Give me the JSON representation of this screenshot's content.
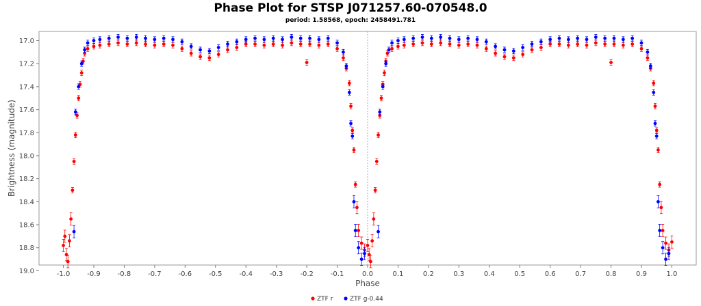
{
  "chart_data": {
    "type": "scatter",
    "title": "Phase Plot for STSP J071257.60-070548.0",
    "subtitle": "period: 1.58568, epoch: 2458491.781",
    "xlabel": "Phase",
    "ylabel": "Brightness (magnitude)",
    "xlim": [
      -1.08,
      1.08
    ],
    "ylim": [
      18.95,
      16.92
    ],
    "y_inverted": true,
    "x_ticks": [
      -1.0,
      -0.9,
      -0.8,
      -0.7,
      -0.6,
      -0.5,
      -0.4,
      -0.3,
      -0.2,
      -0.1,
      0.0,
      0.1,
      0.2,
      0.3,
      0.4,
      0.5,
      0.6,
      0.7,
      0.8,
      0.9,
      1.0
    ],
    "x_tick_labels": [
      "-1.0",
      "-0.9",
      "-0.8",
      "-0.7",
      "-0.6",
      "-0.5",
      "-0.4",
      "-0.3",
      "-0.2",
      "-0.1",
      "0.0",
      "0.1",
      "0.2",
      "0.3",
      "0.4",
      "0.5",
      "0.6",
      "0.7",
      "0.8",
      "0.9",
      "1.0"
    ],
    "y_ticks": [
      17.0,
      17.2,
      17.4,
      17.6,
      17.8,
      18.0,
      18.2,
      18.4,
      18.6,
      18.8,
      19.0
    ],
    "y_tick_labels": [
      "17.0",
      "17.2",
      "17.4",
      "17.6",
      "17.8",
      "18.0",
      "18.2",
      "18.4",
      "18.6",
      "18.8",
      "19.0"
    ],
    "grid": false,
    "reference_line_x": 0.0,
    "legend_position": "bottom-center",
    "series": [
      {
        "name": "ZTF r",
        "color": "#ff0000",
        "points": [
          [
            -1.0,
            18.78
          ],
          [
            -0.995,
            18.7
          ],
          [
            -0.99,
            18.86
          ],
          [
            -0.985,
            18.92
          ],
          [
            -0.98,
            18.74
          ],
          [
            -0.975,
            18.55
          ],
          [
            -0.97,
            18.3
          ],
          [
            -0.965,
            18.05
          ],
          [
            -0.96,
            17.82
          ],
          [
            -0.955,
            17.65
          ],
          [
            -0.95,
            17.5
          ],
          [
            -0.945,
            17.38
          ],
          [
            -0.94,
            17.28
          ],
          [
            -0.935,
            17.18
          ],
          [
            -0.93,
            17.11
          ],
          [
            -0.92,
            17.07
          ],
          [
            -0.9,
            17.05
          ],
          [
            -0.88,
            17.04
          ],
          [
            -0.85,
            17.03
          ],
          [
            -0.82,
            17.02
          ],
          [
            -0.79,
            17.03
          ],
          [
            -0.76,
            17.02
          ],
          [
            -0.73,
            17.03
          ],
          [
            -0.7,
            17.04
          ],
          [
            -0.67,
            17.03
          ],
          [
            -0.64,
            17.04
          ],
          [
            -0.61,
            17.07
          ],
          [
            -0.58,
            17.11
          ],
          [
            -0.55,
            17.14
          ],
          [
            -0.52,
            17.15
          ],
          [
            -0.49,
            17.12
          ],
          [
            -0.46,
            17.08
          ],
          [
            -0.43,
            17.06
          ],
          [
            -0.4,
            17.03
          ],
          [
            -0.37,
            17.03
          ],
          [
            -0.34,
            17.04
          ],
          [
            -0.31,
            17.03
          ],
          [
            -0.28,
            17.04
          ],
          [
            -0.25,
            17.02
          ],
          [
            -0.22,
            17.03
          ],
          [
            -0.2,
            17.19
          ],
          [
            -0.19,
            17.03
          ],
          [
            -0.16,
            17.04
          ],
          [
            -0.13,
            17.03
          ],
          [
            -0.1,
            17.07
          ],
          [
            -0.08,
            17.15
          ],
          [
            -0.07,
            17.24
          ],
          [
            -0.06,
            17.37
          ],
          [
            -0.055,
            17.57
          ],
          [
            -0.05,
            17.78
          ],
          [
            -0.045,
            17.95
          ],
          [
            -0.04,
            18.25
          ],
          [
            -0.035,
            18.45
          ],
          [
            -0.03,
            18.65
          ],
          [
            -0.02,
            18.76
          ],
          [
            -0.01,
            18.82
          ],
          [
            0.0,
            18.78
          ],
          [
            0.005,
            18.86
          ],
          [
            0.01,
            18.92
          ],
          [
            0.015,
            18.74
          ],
          [
            0.02,
            18.55
          ],
          [
            0.025,
            18.3
          ],
          [
            0.03,
            18.05
          ],
          [
            0.035,
            17.82
          ],
          [
            0.04,
            17.65
          ],
          [
            0.045,
            17.5
          ],
          [
            0.05,
            17.38
          ],
          [
            0.055,
            17.28
          ],
          [
            0.06,
            17.18
          ],
          [
            0.065,
            17.11
          ],
          [
            0.08,
            17.07
          ],
          [
            0.1,
            17.05
          ],
          [
            0.12,
            17.04
          ],
          [
            0.15,
            17.03
          ],
          [
            0.18,
            17.02
          ],
          [
            0.21,
            17.03
          ],
          [
            0.24,
            17.02
          ],
          [
            0.27,
            17.03
          ],
          [
            0.3,
            17.04
          ],
          [
            0.33,
            17.03
          ],
          [
            0.36,
            17.04
          ],
          [
            0.39,
            17.07
          ],
          [
            0.42,
            17.11
          ],
          [
            0.45,
            17.14
          ],
          [
            0.48,
            17.15
          ],
          [
            0.51,
            17.12
          ],
          [
            0.54,
            17.08
          ],
          [
            0.57,
            17.06
          ],
          [
            0.6,
            17.03
          ],
          [
            0.63,
            17.03
          ],
          [
            0.66,
            17.04
          ],
          [
            0.69,
            17.03
          ],
          [
            0.72,
            17.04
          ],
          [
            0.75,
            17.02
          ],
          [
            0.78,
            17.03
          ],
          [
            0.8,
            17.19
          ],
          [
            0.81,
            17.03
          ],
          [
            0.84,
            17.04
          ],
          [
            0.87,
            17.03
          ],
          [
            0.9,
            17.07
          ],
          [
            0.92,
            17.15
          ],
          [
            0.93,
            17.24
          ],
          [
            0.94,
            17.37
          ],
          [
            0.945,
            17.57
          ],
          [
            0.95,
            17.78
          ],
          [
            0.955,
            17.95
          ],
          [
            0.96,
            18.25
          ],
          [
            0.965,
            18.45
          ],
          [
            0.97,
            18.65
          ],
          [
            0.98,
            18.76
          ],
          [
            0.99,
            18.82
          ],
          [
            1.0,
            18.75
          ]
        ]
      },
      {
        "name": "ZTF g-0.44",
        "color": "#0000ff",
        "points": [
          [
            -0.965,
            18.66
          ],
          [
            -0.96,
            17.62
          ],
          [
            -0.95,
            17.4
          ],
          [
            -0.94,
            17.2
          ],
          [
            -0.93,
            17.08
          ],
          [
            -0.92,
            17.02
          ],
          [
            -0.9,
            17.0
          ],
          [
            -0.88,
            16.99
          ],
          [
            -0.85,
            16.98
          ],
          [
            -0.82,
            16.97
          ],
          [
            -0.79,
            16.98
          ],
          [
            -0.76,
            16.97
          ],
          [
            -0.73,
            16.98
          ],
          [
            -0.7,
            16.99
          ],
          [
            -0.67,
            16.98
          ],
          [
            -0.64,
            16.99
          ],
          [
            -0.61,
            17.01
          ],
          [
            -0.58,
            17.05
          ],
          [
            -0.55,
            17.08
          ],
          [
            -0.52,
            17.09
          ],
          [
            -0.49,
            17.06
          ],
          [
            -0.46,
            17.03
          ],
          [
            -0.43,
            17.01
          ],
          [
            -0.4,
            16.99
          ],
          [
            -0.37,
            16.98
          ],
          [
            -0.34,
            16.99
          ],
          [
            -0.31,
            16.98
          ],
          [
            -0.28,
            16.99
          ],
          [
            -0.25,
            16.97
          ],
          [
            -0.22,
            16.98
          ],
          [
            -0.19,
            16.98
          ],
          [
            -0.16,
            16.99
          ],
          [
            -0.13,
            16.98
          ],
          [
            -0.1,
            17.02
          ],
          [
            -0.08,
            17.1
          ],
          [
            -0.07,
            17.22
          ],
          [
            -0.06,
            17.45
          ],
          [
            -0.055,
            17.72
          ],
          [
            -0.05,
            17.83
          ],
          [
            -0.045,
            18.4
          ],
          [
            -0.04,
            18.65
          ],
          [
            -0.03,
            18.8
          ],
          [
            -0.02,
            18.9
          ],
          [
            -0.01,
            18.85
          ],
          [
            0.035,
            18.66
          ],
          [
            0.04,
            17.62
          ],
          [
            0.05,
            17.4
          ],
          [
            0.06,
            17.2
          ],
          [
            0.07,
            17.08
          ],
          [
            0.08,
            17.02
          ],
          [
            0.1,
            17.0
          ],
          [
            0.12,
            16.99
          ],
          [
            0.15,
            16.98
          ],
          [
            0.18,
            16.97
          ],
          [
            0.21,
            16.98
          ],
          [
            0.24,
            16.97
          ],
          [
            0.27,
            16.98
          ],
          [
            0.3,
            16.99
          ],
          [
            0.33,
            16.98
          ],
          [
            0.36,
            16.99
          ],
          [
            0.39,
            17.01
          ],
          [
            0.42,
            17.05
          ],
          [
            0.45,
            17.08
          ],
          [
            0.48,
            17.09
          ],
          [
            0.51,
            17.06
          ],
          [
            0.54,
            17.03
          ],
          [
            0.57,
            17.01
          ],
          [
            0.6,
            16.99
          ],
          [
            0.63,
            16.98
          ],
          [
            0.66,
            16.99
          ],
          [
            0.69,
            16.98
          ],
          [
            0.72,
            16.99
          ],
          [
            0.75,
            16.97
          ],
          [
            0.78,
            16.98
          ],
          [
            0.81,
            16.98
          ],
          [
            0.84,
            16.99
          ],
          [
            0.87,
            16.98
          ],
          [
            0.9,
            17.02
          ],
          [
            0.92,
            17.1
          ],
          [
            0.93,
            17.22
          ],
          [
            0.94,
            17.45
          ],
          [
            0.945,
            17.72
          ],
          [
            0.95,
            17.83
          ],
          [
            0.955,
            18.4
          ],
          [
            0.96,
            18.65
          ],
          [
            0.97,
            18.8
          ],
          [
            0.98,
            18.9
          ],
          [
            0.99,
            18.85
          ]
        ]
      }
    ]
  }
}
